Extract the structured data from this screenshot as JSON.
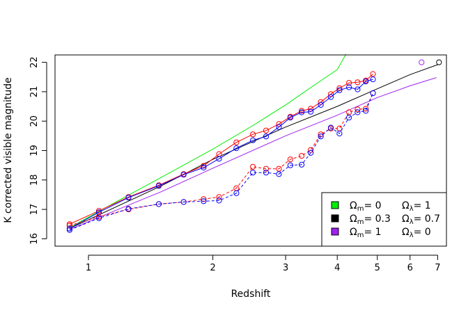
{
  "chart_data": {
    "type": "line",
    "xlabel": "Redshift",
    "ylabel": "K corrected visible magnitude",
    "x_scale": "log",
    "xlim": [
      0.83,
      7.35
    ],
    "ylim": [
      15.75,
      22.25
    ],
    "x_ticks": [
      1,
      2,
      3,
      4,
      5,
      6,
      7
    ],
    "y_ticks": [
      16,
      17,
      18,
      19,
      20,
      21,
      22
    ],
    "grid": false,
    "legend_position": "bottom-right",
    "legend": [
      {
        "omega_m_label": "Ω",
        "omega_m_sub": "m",
        "omega_m_value": "= 0",
        "omega_l_label": "Ω",
        "omega_l_sub": "λ",
        "omega_l_value": "= 1",
        "color": "#00ee00"
      },
      {
        "omega_m_label": "Ω",
        "omega_m_sub": "m",
        "omega_m_value": "= 0.3",
        "omega_l_label": "Ω",
        "omega_l_sub": "λ",
        "omega_l_value": "= 0.7",
        "color": "#000000"
      },
      {
        "omega_m_label": "Ω",
        "omega_m_sub": "m",
        "omega_m_value": "= 1",
        "omega_l_label": "Ω",
        "omega_l_sub": "λ",
        "omega_l_value": "= 0",
        "color": "#a020f0"
      }
    ],
    "model_curves": [
      {
        "color": "#00ee00",
        "x": [
          0.9,
          1.2,
          1.6,
          2.0,
          2.5,
          3.0,
          3.5,
          4.0,
          4.2
        ],
        "y": [
          16.38,
          17.35,
          18.3,
          19.05,
          19.85,
          20.55,
          21.2,
          21.75,
          22.28
        ]
      },
      {
        "color": "#000000",
        "x": [
          0.9,
          1.5,
          2.0,
          3.0,
          4.0,
          5.0,
          6.0,
          7.0
        ],
        "y": [
          16.35,
          17.8,
          18.7,
          19.8,
          20.5,
          21.1,
          21.58,
          21.92
        ]
      },
      {
        "color": "#a020f0",
        "x": [
          0.9,
          1.5,
          2.0,
          3.0,
          4.0,
          5.0,
          6.0,
          6.95
        ],
        "y": [
          16.32,
          17.6,
          18.4,
          19.5,
          20.2,
          20.8,
          21.2,
          21.48
        ]
      }
    ],
    "series": [
      {
        "color": "#ff0000",
        "line": "solid",
        "x": [
          0.9,
          1.06,
          1.25,
          1.48,
          1.7,
          1.9,
          2.07,
          2.28,
          2.5,
          2.69,
          2.89,
          3.08,
          3.28,
          3.45,
          3.65,
          3.86,
          4.05,
          4.27,
          4.48,
          4.69,
          4.88
        ],
        "y": [
          16.5,
          16.95,
          17.42,
          17.82,
          18.2,
          18.48,
          18.88,
          19.28,
          19.55,
          19.68,
          19.9,
          20.15,
          20.35,
          20.42,
          20.65,
          20.92,
          21.12,
          21.3,
          21.32,
          21.38,
          21.6
        ]
      },
      {
        "color": "#0000ff",
        "line": "solid",
        "x": [
          0.9,
          1.06,
          1.25,
          1.48,
          1.7,
          1.9,
          2.07,
          2.28,
          2.5,
          2.69,
          2.89,
          3.08,
          3.28,
          3.45,
          3.65,
          3.86,
          4.05,
          4.27,
          4.48,
          4.69,
          4.88
        ],
        "y": [
          16.35,
          16.9,
          17.4,
          17.8,
          18.18,
          18.42,
          18.72,
          19.08,
          19.35,
          19.48,
          19.8,
          20.12,
          20.3,
          20.32,
          20.55,
          20.82,
          21.05,
          21.15,
          21.08,
          21.35,
          21.42
        ]
      },
      {
        "color": "#ff0000",
        "line": "dashed",
        "x": [
          0.9,
          1.06,
          1.25,
          1.48,
          1.7,
          1.9,
          2.07,
          2.28,
          2.5,
          2.69,
          2.89,
          3.08,
          3.28,
          3.45,
          3.65,
          3.86,
          4.05,
          4.27,
          4.48,
          4.69,
          4.88
        ],
        "y": [
          16.45,
          16.75,
          17.0,
          17.18,
          17.25,
          17.35,
          17.42,
          17.72,
          18.45,
          18.38,
          18.38,
          18.7,
          18.82,
          19.02,
          19.55,
          19.75,
          19.75,
          20.3,
          20.4,
          20.42,
          20.95
        ]
      },
      {
        "color": "#0000ff",
        "line": "dashed",
        "x": [
          0.9,
          1.06,
          1.25,
          1.48,
          1.7,
          1.9,
          2.07,
          2.28,
          2.5,
          2.69,
          2.89,
          3.08,
          3.28,
          3.45,
          3.65,
          3.86,
          4.05,
          4.27,
          4.48,
          4.69,
          4.88
        ],
        "y": [
          16.3,
          16.7,
          17.02,
          17.18,
          17.25,
          17.28,
          17.3,
          17.55,
          18.25,
          18.25,
          18.2,
          18.5,
          18.52,
          18.92,
          19.48,
          19.78,
          19.58,
          20.12,
          20.3,
          20.35,
          20.95
        ]
      }
    ],
    "extra_points": [
      {
        "color": "#a020f0",
        "x": 6.4,
        "y": 22.0
      },
      {
        "color": "#000000",
        "x": 7.05,
        "y": 22.0
      }
    ]
  }
}
